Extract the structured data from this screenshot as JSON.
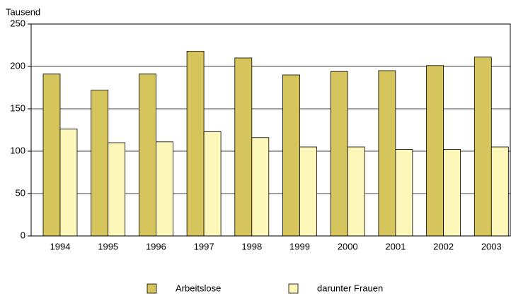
{
  "chart_data": {
    "type": "bar",
    "y_unit_label": "Tausend",
    "categories": [
      "1994",
      "1995",
      "1996",
      "1997",
      "1998",
      "1999",
      "2000",
      "2001",
      "2002",
      "2003"
    ],
    "series": [
      {
        "name": "Arbeitslose",
        "color": "#d6c45c",
        "values": [
          191,
          172,
          191,
          218,
          210,
          190,
          194,
          195,
          201,
          211
        ]
      },
      {
        "name": "darunter Frauen",
        "color": "#fdf8ba",
        "values": [
          126,
          110,
          111,
          123,
          116,
          105,
          105,
          102,
          102,
          105
        ]
      }
    ],
    "ylim": [
      0,
      250
    ],
    "yticks": [
      0,
      50,
      100,
      150,
      200,
      250
    ],
    "grid": true,
    "legend": "bottom"
  }
}
